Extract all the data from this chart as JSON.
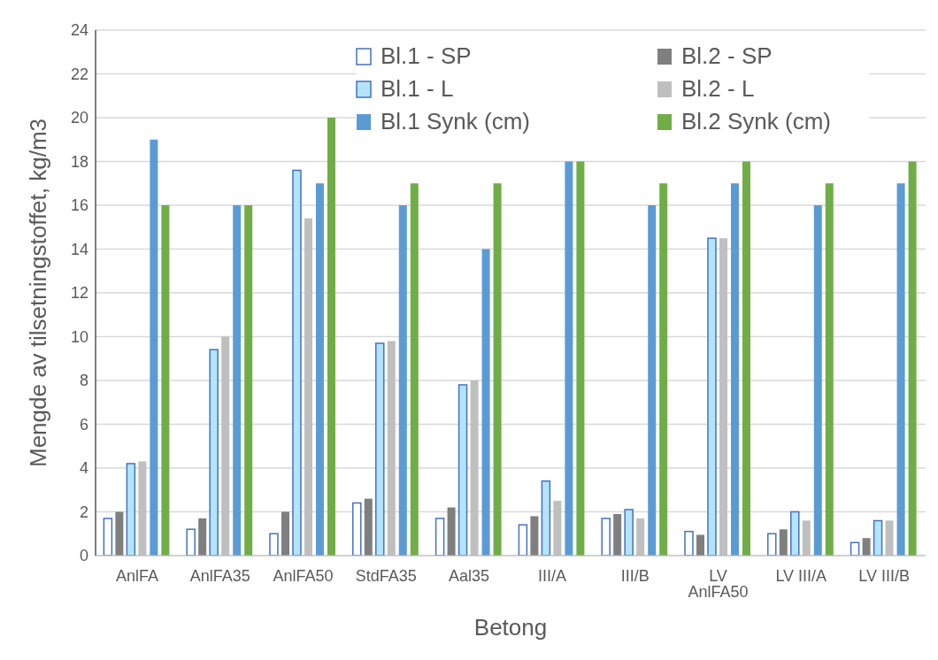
{
  "chart_data": {
    "type": "bar",
    "xlabel": "Betong",
    "ylabel": "Mengde  av tilsetningstoffet,  kg/m3",
    "categories": [
      "AnlFA",
      "AnlFA35",
      "AnlFA50",
      "StdFA35",
      "Aal35",
      "III/A",
      "III/B",
      "LV AnlFA50",
      "LV III/A",
      "LV III/B"
    ],
    "series": [
      {
        "name": "Bl.1 - SP",
        "color": "#ffffff",
        "values": [
          1.7,
          1.2,
          1.0,
          2.4,
          1.7,
          1.4,
          1.7,
          1.1,
          1.0,
          0.6
        ]
      },
      {
        "name": "Bl.2 - SP",
        "color": "#7f7f7f",
        "values": [
          2.0,
          1.7,
          2.0,
          2.6,
          2.2,
          1.8,
          1.9,
          0.95,
          1.2,
          0.8
        ]
      },
      {
        "name": "Bl.1 - L",
        "color": "#b4e4fa",
        "values": [
          4.2,
          9.4,
          17.6,
          9.7,
          7.8,
          3.4,
          2.1,
          14.5,
          2.0,
          1.6
        ]
      },
      {
        "name": "Bl.2 - L",
        "color": "#bfbfbf",
        "values": [
          4.3,
          10.0,
          15.4,
          9.8,
          8.0,
          2.5,
          1.7,
          14.5,
          1.6,
          1.6
        ]
      },
      {
        "name": "Bl.1 Synk (cm)",
        "color": "#5b9bd5",
        "values": [
          19,
          16,
          17,
          16,
          14,
          18,
          16,
          17,
          16,
          17
        ]
      },
      {
        "name": "Bl.2 Synk (cm)",
        "color": "#70ad47",
        "values": [
          16,
          16,
          20,
          17,
          17,
          18,
          17,
          18,
          17,
          18
        ]
      }
    ],
    "ylim": [
      0,
      24
    ],
    "yticks": [
      0,
      2,
      4,
      6,
      8,
      10,
      12,
      14,
      16,
      18,
      20,
      22,
      24
    ],
    "grid": "y",
    "legend": "top right"
  }
}
